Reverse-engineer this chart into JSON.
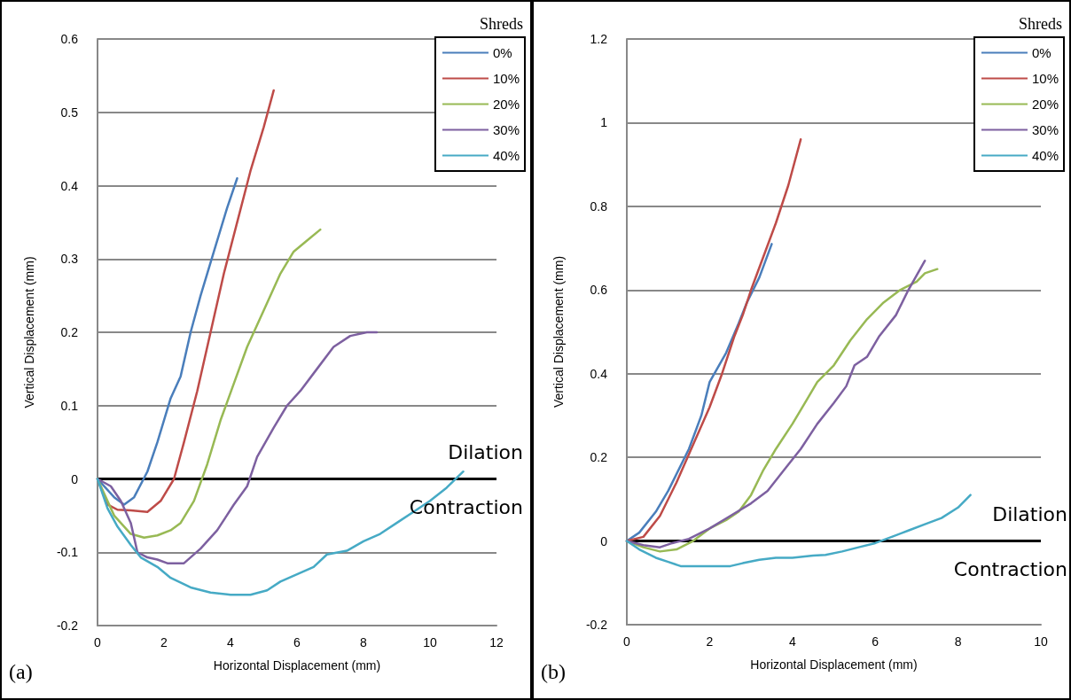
{
  "chart_data": [
    {
      "type": "line",
      "xlabel": "Horizontal Displacement (mm)",
      "ylabel": "Vertical Displacement (mm)",
      "legend_title": "Shreds",
      "legend": "top right",
      "grid": "y",
      "marker": "none",
      "line_style": "solid",
      "xlim": [
        0,
        12
      ],
      "xticks": [
        0,
        2,
        4,
        6,
        8,
        10,
        12
      ],
      "ylim": [
        -0.2,
        0.6
      ],
      "yticks": [
        -0.2,
        -0.1,
        0,
        0.1,
        0.2,
        0.3,
        0.4,
        0.5,
        0.6
      ],
      "ref_lines": [
        {
          "axis": "y",
          "value": 0,
          "label": null,
          "color": "#000000"
        }
      ],
      "annotations": [
        "(a)",
        "Dilation",
        "Contraction"
      ],
      "series": [
        {
          "name": "0%",
          "color": "#4a7ebb",
          "x": [
            0,
            0.5,
            0.8,
            1.1,
            1.5,
            1.8,
            2.2,
            2.5,
            2.8,
            3.1,
            3.5,
            3.9,
            4.2
          ],
          "values": [
            0,
            -0.025,
            -0.035,
            -0.025,
            0.01,
            0.05,
            0.11,
            0.14,
            0.2,
            0.25,
            0.31,
            0.37,
            0.41
          ]
        },
        {
          "name": "10%",
          "color": "#be4b48",
          "x": [
            0,
            0.3,
            0.6,
            1.0,
            1.5,
            1.9,
            2.3,
            2.6,
            3.0,
            3.4,
            3.8,
            4.2,
            4.6,
            5.0,
            5.3
          ],
          "values": [
            0,
            -0.035,
            -0.042,
            -0.043,
            -0.045,
            -0.03,
            0,
            0.05,
            0.12,
            0.2,
            0.28,
            0.35,
            0.42,
            0.48,
            0.53
          ]
        },
        {
          "name": "20%",
          "color": "#98b954",
          "x": [
            0,
            0.5,
            1.0,
            1.4,
            1.8,
            2.2,
            2.5,
            2.9,
            3.3,
            3.7,
            4.1,
            4.5,
            5.0,
            5.5,
            5.9,
            6.3,
            6.7
          ],
          "values": [
            0,
            -0.05,
            -0.075,
            -0.08,
            -0.077,
            -0.07,
            -0.06,
            -0.03,
            0.02,
            0.08,
            0.13,
            0.18,
            0.23,
            0.28,
            0.31,
            0.325,
            0.34
          ]
        },
        {
          "name": "30%",
          "color": "#7d60a0",
          "x": [
            0,
            0.4,
            0.7,
            1.0,
            1.2,
            1.5,
            1.8,
            2.1,
            2.6,
            3.1,
            3.6,
            4.1,
            4.5,
            4.8,
            5.3,
            5.7,
            6.1,
            6.6,
            7.1,
            7.6,
            8.1,
            8.4
          ],
          "values": [
            0,
            -0.01,
            -0.03,
            -0.06,
            -0.1,
            -0.107,
            -0.11,
            -0.115,
            -0.115,
            -0.095,
            -0.07,
            -0.035,
            -0.01,
            0.03,
            0.07,
            0.1,
            0.12,
            0.15,
            0.18,
            0.195,
            0.2,
            0.2
          ]
        },
        {
          "name": "40%",
          "color": "#46aac5",
          "x": [
            0,
            0.3,
            0.6,
            1.0,
            1.3,
            1.8,
            2.2,
            2.8,
            3.4,
            4.0,
            4.6,
            5.1,
            5.5,
            6.0,
            6.5,
            6.9,
            7.5,
            8.0,
            8.5,
            9.0,
            9.5,
            10.0,
            10.5,
            11.0
          ],
          "values": [
            0,
            -0.04,
            -0.065,
            -0.09,
            -0.107,
            -0.12,
            -0.135,
            -0.148,
            -0.155,
            -0.158,
            -0.158,
            -0.152,
            -0.14,
            -0.13,
            -0.12,
            -0.103,
            -0.098,
            -0.085,
            -0.075,
            -0.06,
            -0.045,
            -0.03,
            -0.012,
            0.01
          ]
        }
      ]
    },
    {
      "type": "line",
      "xlabel": "Horizontal Displacement (mm)",
      "ylabel": "Vertical Displacement (mm)",
      "legend_title": "Shreds",
      "legend": "top right",
      "grid": "y",
      "marker": "none",
      "line_style": "solid",
      "xlim": [
        0,
        10
      ],
      "xticks": [
        0,
        2,
        4,
        6,
        8,
        10
      ],
      "ylim": [
        -0.2,
        1.2
      ],
      "yticks": [
        -0.2,
        0,
        0.2,
        0.4,
        0.6,
        0.8,
        1,
        1.2
      ],
      "ref_lines": [
        {
          "axis": "y",
          "value": 0,
          "label": null,
          "color": "#000000"
        }
      ],
      "annotations": [
        "(b)",
        "Dilation",
        "Contraction"
      ],
      "series": [
        {
          "name": "0%",
          "color": "#4a7ebb",
          "x": [
            0,
            0.3,
            0.7,
            1.0,
            1.5,
            1.8,
            2.0,
            2.4,
            2.7,
            2.9,
            3.2,
            3.5
          ],
          "values": [
            0,
            0.02,
            0.07,
            0.12,
            0.22,
            0.3,
            0.38,
            0.45,
            0.52,
            0.57,
            0.63,
            0.71
          ]
        },
        {
          "name": "10%",
          "color": "#be4b48",
          "x": [
            0,
            0.4,
            0.8,
            1.2,
            1.6,
            2.0,
            2.3,
            2.6,
            2.8,
            3.0,
            3.3,
            3.6,
            3.9,
            4.2
          ],
          "values": [
            0,
            0.01,
            0.06,
            0.14,
            0.23,
            0.32,
            0.4,
            0.49,
            0.54,
            0.6,
            0.68,
            0.76,
            0.85,
            0.96
          ]
        },
        {
          "name": "20%",
          "color": "#98b954",
          "x": [
            0,
            0.4,
            0.8,
            1.2,
            1.6,
            2.0,
            2.4,
            2.7,
            3.0,
            3.3,
            3.6,
            4.0,
            4.3,
            4.6,
            5.0,
            5.4,
            5.8,
            6.2,
            6.6,
            7.0,
            7.2,
            7.5
          ],
          "values": [
            0,
            -0.015,
            -0.025,
            -0.02,
            0,
            0.03,
            0.05,
            0.07,
            0.11,
            0.17,
            0.22,
            0.28,
            0.33,
            0.38,
            0.42,
            0.48,
            0.53,
            0.57,
            0.6,
            0.62,
            0.64,
            0.65
          ]
        },
        {
          "name": "30%",
          "color": "#7d60a0",
          "x": [
            0,
            0.4,
            0.8,
            1.1,
            1.5,
            2.0,
            2.5,
            3.0,
            3.4,
            3.8,
            4.2,
            4.6,
            5.0,
            5.3,
            5.5,
            5.8,
            6.1,
            6.5,
            6.8,
            7.2
          ],
          "values": [
            0,
            -0.01,
            -0.015,
            -0.005,
            0.005,
            0.03,
            0.06,
            0.09,
            0.12,
            0.17,
            0.22,
            0.28,
            0.33,
            0.37,
            0.42,
            0.44,
            0.49,
            0.54,
            0.6,
            0.67
          ]
        },
        {
          "name": "40%",
          "color": "#46aac5",
          "x": [
            0,
            0.3,
            0.7,
            1.0,
            1.3,
            1.5,
            2.0,
            2.5,
            2.8,
            3.2,
            3.6,
            4.0,
            4.5,
            4.8,
            5.2,
            5.6,
            6.0,
            6.4,
            6.8,
            7.2,
            7.6,
            8.0,
            8.3
          ],
          "values": [
            0,
            -0.02,
            -0.04,
            -0.05,
            -0.06,
            -0.06,
            -0.06,
            -0.06,
            -0.053,
            -0.045,
            -0.04,
            -0.04,
            -0.035,
            -0.033,
            -0.025,
            -0.015,
            -0.005,
            0.01,
            0.025,
            0.04,
            0.055,
            0.08,
            0.11
          ]
        }
      ]
    }
  ]
}
